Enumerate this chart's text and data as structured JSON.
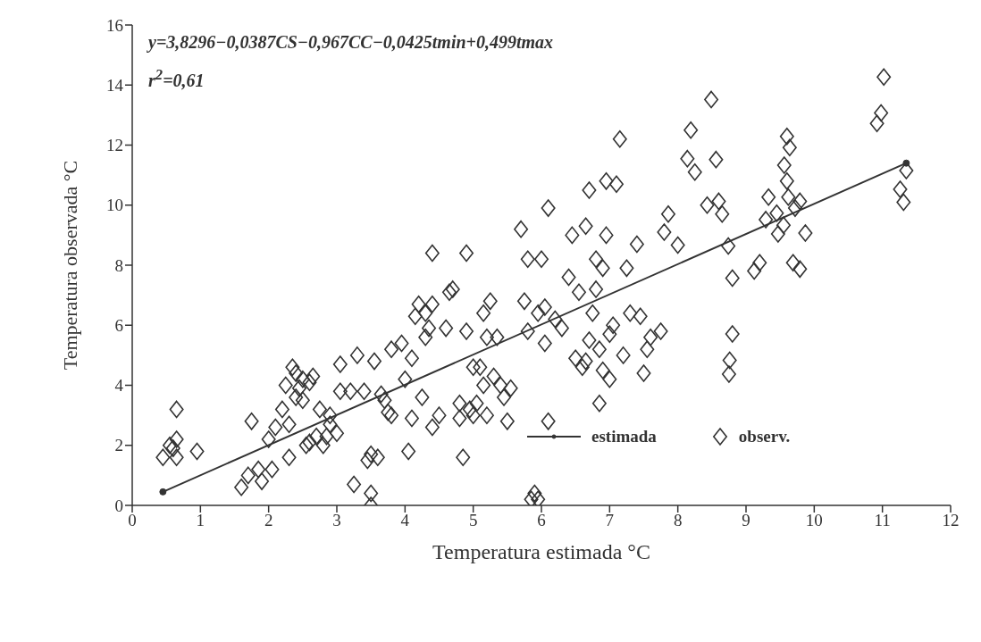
{
  "chart_data": {
    "type": "scatter",
    "xlabel": "Temperatura estimada °C",
    "ylabel": "Temperatura observada °C",
    "annotations": [
      "y=3,8296−0,0387CS−0,967CC−0,0425tmin+0,499tmax",
      "r$^{2}$=0,61"
    ],
    "xlim": [
      0,
      12
    ],
    "xticks": [
      0,
      1,
      2,
      3,
      4,
      5,
      6,
      7,
      8,
      9,
      10,
      11,
      12
    ],
    "ylim": [
      0,
      16
    ],
    "yticks": [
      0,
      2,
      4,
      6,
      8,
      10,
      12,
      14,
      16
    ],
    "grid": false,
    "legend": "bottom right",
    "series": [
      {
        "name": "estimada",
        "type": "line",
        "color": "#333333",
        "marker": "circle",
        "line_style": "solid",
        "x": [
          0.45,
          11.35
        ],
        "values": [
          0.45,
          11.4
        ]
      },
      {
        "name": "observ.",
        "color": "#333333",
        "marker": "diamond",
        "x": [
          0.45,
          0.55,
          0.6,
          0.65,
          0.65,
          0.65,
          0.95,
          1.6,
          1.7,
          1.75,
          1.85,
          1.9,
          2.0,
          2.05,
          2.1,
          2.2,
          2.25,
          2.3,
          2.3,
          2.35,
          2.4,
          2.4,
          2.45,
          2.5,
          2.5,
          2.55,
          2.6,
          2.6,
          2.65,
          2.7,
          2.75,
          2.8,
          2.85,
          2.9,
          2.9,
          3.0,
          3.05,
          3.05,
          3.2,
          3.25,
          3.3,
          3.4,
          3.45,
          3.5,
          3.5,
          3.5,
          3.55,
          3.6,
          3.65,
          3.7,
          3.75,
          3.8,
          3.8,
          3.95,
          4.0,
          4.05,
          4.1,
          4.1,
          4.15,
          4.2,
          4.25,
          4.3,
          4.3,
          4.35,
          4.4,
          4.4,
          4.4,
          4.5,
          4.6,
          4.65,
          4.7,
          4.8,
          4.8,
          4.85,
          4.9,
          4.9,
          4.95,
          5.0,
          5.0,
          5.05,
          5.1,
          5.15,
          5.15,
          5.2,
          5.2,
          5.25,
          5.3,
          5.35,
          5.4,
          5.45,
          5.5,
          5.55,
          5.7,
          5.75,
          5.8,
          5.8,
          5.85,
          5.9,
          5.95,
          5.95,
          6.0,
          6.05,
          6.05,
          6.1,
          6.1,
          6.2,
          6.3,
          6.4,
          6.45,
          6.5,
          6.55,
          6.6,
          6.65,
          6.65,
          6.7,
          6.7,
          6.75,
          6.8,
          6.8,
          6.85,
          6.85,
          6.9,
          6.9,
          6.95,
          6.95,
          7.0,
          7.0,
          7.05,
          7.1,
          7.15,
          7.2,
          7.25,
          7.3,
          7.4,
          7.45,
          7.5,
          7.55,
          7.6,
          7.75,
          7.8,
          7.86,
          8.0,
          8.14,
          8.19,
          8.25,
          8.43,
          8.49,
          8.56,
          8.6,
          8.65,
          8.74,
          8.75,
          8.76,
          8.8,
          8.8,
          9.12,
          9.2,
          9.29,
          9.33,
          9.45,
          9.47,
          9.55,
          9.56,
          9.6,
          9.6,
          9.62,
          9.64,
          9.69,
          9.72,
          9.79,
          9.79,
          9.87,
          10.92,
          10.98,
          11.02,
          11.26,
          11.31,
          11.35
        ],
        "values": [
          1.6,
          2.0,
          1.9,
          2.2,
          1.6,
          3.2,
          1.8,
          0.6,
          1.0,
          2.8,
          1.2,
          0.8,
          2.2,
          1.2,
          2.6,
          3.2,
          4.0,
          2.7,
          1.6,
          4.6,
          4.4,
          3.6,
          3.9,
          4.2,
          3.5,
          2.0,
          4.1,
          2.1,
          4.3,
          2.3,
          3.2,
          2.0,
          2.3,
          3.0,
          2.7,
          2.4,
          4.7,
          3.8,
          3.8,
          0.7,
          5.0,
          3.8,
          1.5,
          1.7,
          0.0,
          0.4,
          4.8,
          1.6,
          3.7,
          3.5,
          3.1,
          3.0,
          5.2,
          5.4,
          4.2,
          1.8,
          4.9,
          2.9,
          6.3,
          6.7,
          3.6,
          6.4,
          5.6,
          5.9,
          2.6,
          6.7,
          8.4,
          3.0,
          5.9,
          7.1,
          7.2,
          2.9,
          3.4,
          1.6,
          8.4,
          5.8,
          3.2,
          4.6,
          3.0,
          3.4,
          4.6,
          6.4,
          4.0,
          5.6,
          3.0,
          6.8,
          4.3,
          5.6,
          4.0,
          3.6,
          2.8,
          3.9,
          9.2,
          6.8,
          8.2,
          5.8,
          0.2,
          0.4,
          6.4,
          0.2,
          8.2,
          6.6,
          5.4,
          2.8,
          9.9,
          6.2,
          5.9,
          7.6,
          9.0,
          4.9,
          7.1,
          4.6,
          9.3,
          4.8,
          10.5,
          5.5,
          6.4,
          7.2,
          8.2,
          3.4,
          5.2,
          4.5,
          7.9,
          9.0,
          10.8,
          5.7,
          4.2,
          6.0,
          10.7,
          12.2,
          5.0,
          7.9,
          6.4,
          8.7,
          6.3,
          4.4,
          5.2,
          5.6,
          5.8,
          9.1,
          9.7,
          8.67,
          11.55,
          12.5,
          11.1,
          10.0,
          13.52,
          11.52,
          10.13,
          9.7,
          8.64,
          4.37,
          4.83,
          7.57,
          5.71,
          7.81,
          8.08,
          9.52,
          10.27,
          9.73,
          9.04,
          9.33,
          11.33,
          12.29,
          10.8,
          10.27,
          11.92,
          8.08,
          9.9,
          10.13,
          7.87,
          9.07,
          12.72,
          13.07,
          14.27,
          10.53,
          10.1,
          11.15
        ]
      }
    ]
  }
}
